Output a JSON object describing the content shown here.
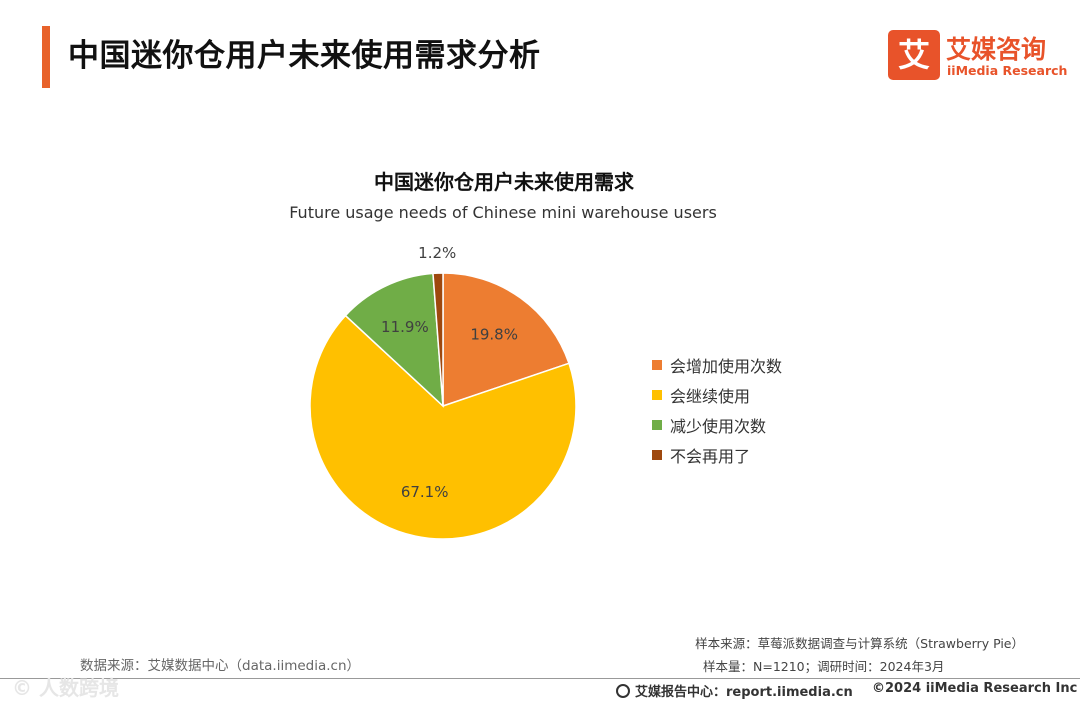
{
  "page_title": "中国迷你仓用户未来使用需求分析",
  "logo": {
    "mark": "艾",
    "cn": "艾媒咨询",
    "en": "iiMedia Research",
    "color": "#e8532a"
  },
  "chart_data": {
    "type": "pie",
    "title": "中国迷你仓用户未来使用需求",
    "subtitle": "Future usage needs of Chinese mini warehouse users",
    "slices": [
      {
        "label": "会增加使用次数",
        "value": 19.8,
        "display": "19.8%",
        "color": "#ed7d31"
      },
      {
        "label": "会继续使用",
        "value": 67.1,
        "display": "67.1%",
        "color": "#ffc000"
      },
      {
        "label": "减少使用次数",
        "value": 11.9,
        "display": "11.9%",
        "color": "#70ad47"
      },
      {
        "label": "不会再用了",
        "value": 1.2,
        "display": "1.2%",
        "color": "#9e480e"
      }
    ],
    "legend_position": "right",
    "start": "12 o'clock",
    "direction": "clockwise"
  },
  "source": {
    "data_source": "数据来源：艾媒数据中心（data.iimedia.cn）",
    "sample_source": "样本来源：草莓派数据调查与计算系统（Strawberry Pie）",
    "sample_info": "样本量：N=1210；调研时间：2024年3月"
  },
  "footer": {
    "left_watermark": "©  人数跨境",
    "center": "艾媒报告中心：report.iimedia.cn",
    "right": "©2024  iiMedia Research  Inc"
  }
}
